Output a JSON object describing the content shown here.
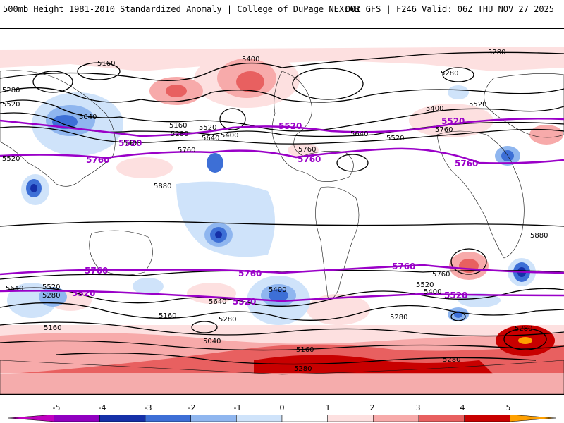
{
  "header": {
    "title": "500mb Height 1981-2010 Standardized Anomaly | College of DuPage NEXLAB",
    "run_info": "00Z GFS | F246 Valid: 06Z THU NOV 27 2025"
  },
  "map": {
    "highlighted_contours": [
      "5520",
      "5760"
    ],
    "contour_labels": [
      "5400",
      "5280",
      "5160",
      "5280",
      "5520",
      "5040",
      "5400",
      "5160",
      "5280",
      "5520",
      "5640",
      "5400",
      "5520",
      "5760",
      "5640",
      "5520",
      "5760",
      "5520",
      "5760",
      "5280",
      "5400",
      "5880",
      "5880",
      "5760",
      "5640",
      "5520",
      "5280",
      "5160",
      "5040",
      "5400",
      "5160",
      "5280",
      "5640",
      "5520",
      "5400",
      "5280",
      "5160",
      "5280",
      "5280",
      "5280"
    ],
    "colors": {
      "contour": "#000000",
      "highlight": "#9a00c8",
      "pos1": "#fde0e0",
      "pos2": "#f7aaaa",
      "pos3": "#e86060",
      "pos4": "#c80000",
      "neg1": "#cfe3fa",
      "neg2": "#8fb6ef",
      "neg3": "#3d6fd6",
      "neg4": "#1530a8"
    }
  },
  "colorbar": {
    "ticks": [
      "-5",
      "-4",
      "-3",
      "-2",
      "-1",
      "0",
      "1",
      "2",
      "3",
      "4",
      "5"
    ],
    "colors": [
      "#c000c0",
      "#9000c0",
      "#1530a8",
      "#3d6fd6",
      "#8fb6ef",
      "#cfe3fa",
      "#ffffff",
      "#fde0e0",
      "#f7aaaa",
      "#e86060",
      "#c80000",
      "#ffa000"
    ]
  }
}
